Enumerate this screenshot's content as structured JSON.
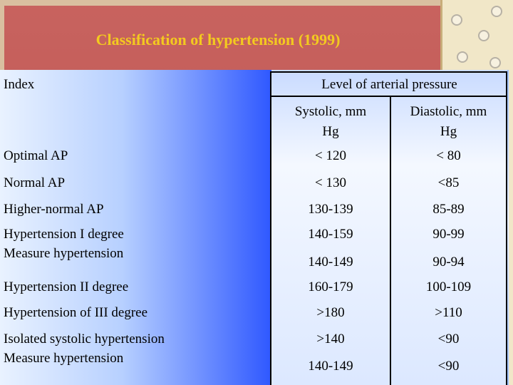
{
  "slide": {
    "title": "Classification of hypertension (1999)"
  },
  "table": {
    "header_index": "Index",
    "header_level": "Level of arterial pressure",
    "header_systolic_line1": "Systolic, mm",
    "header_systolic_line2": "Hg",
    "header_diastolic_line1": "Diastolic, mm",
    "header_diastolic_line2": "Hg",
    "rows": [
      {
        "label": "Optimal AP",
        "systolic": "< 120",
        "diastolic": "< 80"
      },
      {
        "label": "Normal AP",
        "systolic": "< 130",
        "diastolic": "<85"
      },
      {
        "label": "Higher-normal AP",
        "systolic": "130-139",
        "diastolic": "85-89"
      },
      {
        "label": "Hypertension I degree",
        "systolic": "140-159",
        "diastolic": "90-99"
      },
      {
        "label": "Measure hypertension",
        "systolic": "140-149",
        "diastolic": "90-94"
      },
      {
        "label": "Hypertension II degree",
        "systolic": "160-179",
        "diastolic": "100-109"
      },
      {
        "label": "Hypertension of III degree",
        "systolic": ">180",
        "diastolic": ">110"
      },
      {
        "label": "Isolated systolic hypertension",
        "systolic": ">140",
        "diastolic": "<90"
      },
      {
        "label": "Measure hypertension",
        "systolic": "140-149",
        "diastolic": "<90"
      }
    ]
  }
}
